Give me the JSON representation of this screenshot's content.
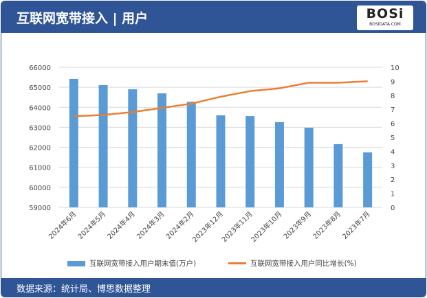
{
  "header": {
    "title": "互联网宽带接入 | 用户",
    "logo_text": "BOSi",
    "logo_sub": "BOSIDATA.COM"
  },
  "footer": {
    "source": "数据来源：统计局、博思数据整理"
  },
  "colors": {
    "bar": "#5b9bd5",
    "line": "#ed7d31",
    "header": "#2f5597"
  },
  "chart_data": {
    "type": "bar+line",
    "categories": [
      "2024年6月",
      "2024年5月",
      "2024年4月",
      "2024年3月",
      "2024年2月",
      "2023年12月",
      "2023年11月",
      "2023年10月",
      "2023年9月",
      "2023年8月",
      "2023年7月"
    ],
    "series": [
      {
        "name": "互联网宽带接入用户期末值(万户)",
        "type": "bar",
        "axis": "left",
        "values": [
          65420,
          65110,
          64900,
          64700,
          64280,
          63600,
          63560,
          63260,
          62980,
          62160,
          61750
        ]
      },
      {
        "name": "互联网宽带接入用户同比增长(%)",
        "type": "line",
        "axis": "right",
        "values": [
          6.5,
          6.6,
          6.8,
          7.1,
          7.4,
          7.9,
          8.3,
          8.5,
          8.9,
          8.9,
          9.0
        ]
      }
    ],
    "y_left": {
      "min": 59000,
      "max": 66000,
      "ticks": [
        "59000",
        "60000",
        "61000",
        "62000",
        "63000",
        "64000",
        "65000",
        "66000"
      ]
    },
    "y_right": {
      "min": 0,
      "max": 10,
      "ticks": [
        "0",
        "1",
        "2",
        "3",
        "4",
        "5",
        "6",
        "7",
        "8",
        "9",
        "10"
      ]
    },
    "grid": true,
    "legend": "bottom"
  }
}
